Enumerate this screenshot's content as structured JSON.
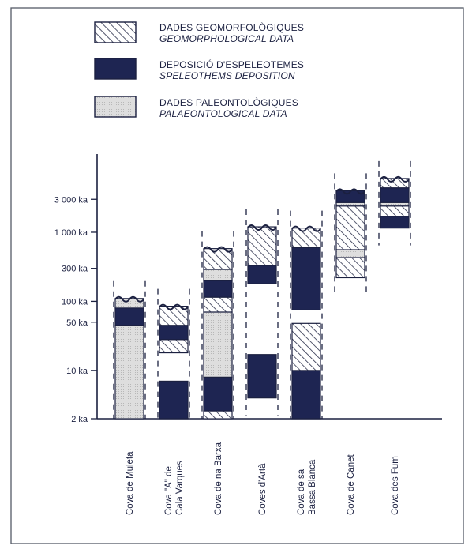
{
  "colors": {
    "ink": "#1b2040",
    "frame": "#555a66",
    "speleothem_fill": "#1e2552",
    "palaeo_fill": "#dcdcdc",
    "hatch": "#2a2f4a"
  },
  "legend": [
    {
      "key": "geo",
      "label": "DADES GEOMORFOLÒGIQUES",
      "sublabel": "GEOMORPHOLOGICAL DATA",
      "pattern": "hatched"
    },
    {
      "key": "spel",
      "label": "DEPOSICIÓ D'ESPELEOTEMES",
      "sublabel": "SPELEOTHEMS DEPOSITION",
      "pattern": "solid-dark"
    },
    {
      "key": "pal",
      "label": "DADES PALEONTOLÒGIQUES",
      "sublabel": "PALAEONTOLOGICAL DATA",
      "pattern": "stippled-light"
    }
  ],
  "chart_data": {
    "type": "range-bar",
    "y_scale": "log",
    "y_unit": "ka",
    "ylim": [
      2,
      8000
    ],
    "y_ticks": [
      {
        "value": 2,
        "label": "2 ka"
      },
      {
        "value": 10,
        "label": "10 ka"
      },
      {
        "value": 50,
        "label": "50 ka"
      },
      {
        "value": 100,
        "label": "100 ka"
      },
      {
        "value": 300,
        "label": "300 ka"
      },
      {
        "value": 1000,
        "label": "1 000 ka"
      },
      {
        "value": 3000,
        "label": "3 000 ka"
      }
    ],
    "legend_placement": "top",
    "categories": [
      {
        "name": "Cova de Muleta",
        "segments": [
          {
            "type": "pal",
            "from": 2,
            "to": 45
          },
          {
            "type": "spel",
            "from": 45,
            "to": 80
          },
          {
            "type": "pal",
            "from": 80,
            "to": 110
          }
        ]
      },
      {
        "name": "Cova \"A\" de Cala Varques",
        "segments": [
          {
            "type": "spel",
            "from": 2,
            "to": 7
          },
          {
            "type": "geo",
            "from": 18,
            "to": 28
          },
          {
            "type": "spel",
            "from": 28,
            "to": 45
          },
          {
            "type": "geo",
            "from": 45,
            "to": 85
          }
        ]
      },
      {
        "name": "Cova de na Barxa",
        "segments": [
          {
            "type": "geo",
            "from": 2,
            "to": 2.6
          },
          {
            "type": "spel",
            "from": 2.6,
            "to": 8
          },
          {
            "type": "pal",
            "from": 8,
            "to": 70
          },
          {
            "type": "geo",
            "from": 70,
            "to": 115
          },
          {
            "type": "spel",
            "from": 115,
            "to": 200
          },
          {
            "type": "pal",
            "from": 200,
            "to": 290
          },
          {
            "type": "geo",
            "from": 290,
            "to": 580
          }
        ]
      },
      {
        "name": "Coves d'Artà",
        "segments": [
          {
            "type": "spel",
            "from": 4,
            "to": 17
          },
          {
            "type": "spel",
            "from": 180,
            "to": 330
          },
          {
            "type": "geo",
            "from": 330,
            "to": 1200
          }
        ]
      },
      {
        "name": "Cova de sa Bassa Blanca",
        "segments": [
          {
            "type": "spel",
            "from": 2,
            "to": 10
          },
          {
            "type": "geo",
            "from": 10,
            "to": 48
          },
          {
            "type": "spel",
            "from": 75,
            "to": 600
          },
          {
            "type": "geo",
            "from": 600,
            "to": 1150
          }
        ]
      },
      {
        "name": "Cova de Canet",
        "segments": [
          {
            "type": "geo",
            "from": 220,
            "to": 430
          },
          {
            "type": "pal",
            "from": 430,
            "to": 560
          },
          {
            "type": "geo",
            "from": 560,
            "to": 2400
          },
          {
            "type": "pal",
            "from": 2400,
            "to": 2700
          },
          {
            "type": "spel",
            "from": 2700,
            "to": 4000
          }
        ]
      },
      {
        "name": "Cova des Fum",
        "segments": [
          {
            "type": "spel",
            "from": 1150,
            "to": 1700
          },
          {
            "type": "geo",
            "from": 1700,
            "to": 2400
          },
          {
            "type": "pal",
            "from": 2400,
            "to": 2700
          },
          {
            "type": "spel",
            "from": 2700,
            "to": 4400
          },
          {
            "type": "geo",
            "from": 4400,
            "to": 6000
          }
        ]
      }
    ]
  }
}
